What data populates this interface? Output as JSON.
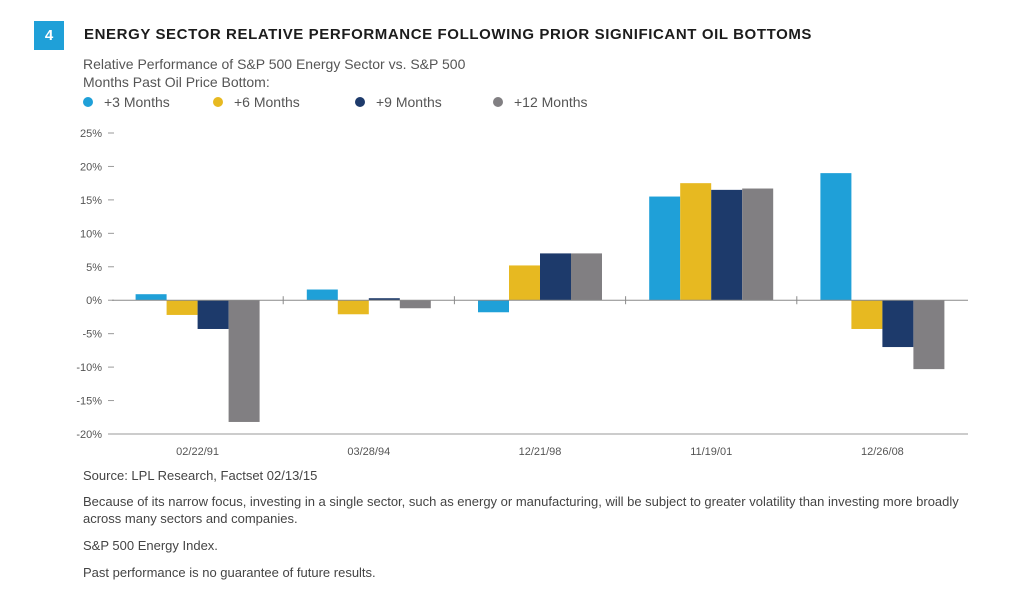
{
  "figure": {
    "number": "4",
    "title": "ENERGY SECTOR RELATIVE PERFORMANCE FOLLOWING PRIOR SIGNIFICANT OIL BOTTOMS",
    "subtitle_line1": "Relative Performance of S&P 500 Energy Sector vs. S&P 500",
    "subtitle_line2": "Months Past Oil Price Bottom:"
  },
  "chart_data": {
    "type": "bar",
    "title": "ENERGY SECTOR RELATIVE PERFORMANCE FOLLOWING PRIOR SIGNIFICANT OIL BOTTOMS",
    "ylabel": "Relative Performance of S&P 500 Energy Sector vs. S&P 500",
    "categories": [
      "02/22/91",
      "03/28/94",
      "12/21/98",
      "11/19/01",
      "12/26/08"
    ],
    "series": [
      {
        "name": "+3 Months",
        "color": "#1fa0d8",
        "values": [
          0.9,
          1.6,
          -1.8,
          15.5,
          19.0
        ]
      },
      {
        "name": "+6 Months",
        "color": "#e7b921",
        "values": [
          -2.2,
          -2.1,
          5.2,
          17.5,
          -4.3
        ]
      },
      {
        "name": "+9 Months",
        "color": "#1d3a6b",
        "values": [
          -4.3,
          0.3,
          7.0,
          16.5,
          -7.0
        ]
      },
      {
        "name": "+12 Months",
        "color": "#817f82",
        "values": [
          -18.2,
          -1.2,
          7.0,
          16.7,
          -10.3
        ]
      }
    ],
    "yticks": [
      {
        "value": 25,
        "label": "25%"
      },
      {
        "value": 20,
        "label": "20%"
      },
      {
        "value": 15,
        "label": "15%"
      },
      {
        "value": 10,
        "label": "10%"
      },
      {
        "value": 5,
        "label": "5%"
      },
      {
        "value": 0,
        "label": "0%"
      },
      {
        "value": -5,
        "label": "-5%"
      },
      {
        "value": -10,
        "label": "-10%"
      },
      {
        "value": -15,
        "label": "-15%"
      },
      {
        "value": -20,
        "label": "-20%"
      }
    ],
    "ylim": [
      -20,
      25
    ],
    "legend_position": "top-left",
    "grid": false
  },
  "footer": {
    "source": "Source: LPL Research, Factset 02/13/15",
    "disclaimer": "Because of its narrow focus, investing in a single sector, such as energy or manufacturing, will be subject to greater volatility than investing more broadly across many sectors and companies.",
    "index_note": "S&P 500 Energy Index.",
    "performance_note": "Past performance is no guarantee of future results."
  }
}
